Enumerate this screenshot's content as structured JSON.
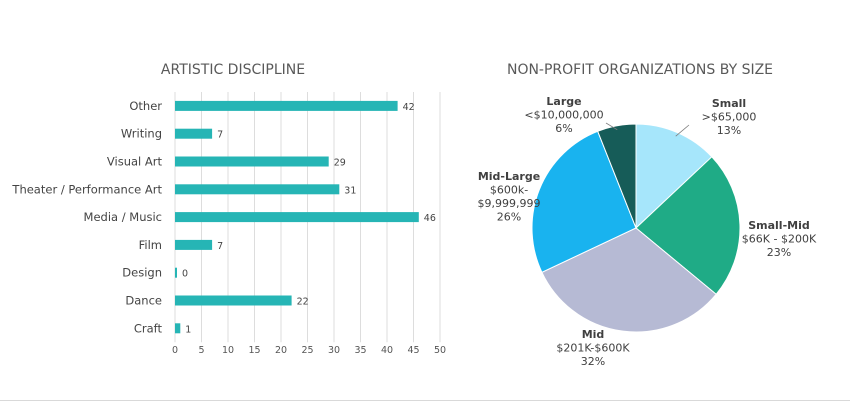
{
  "chart_data": [
    {
      "type": "bar",
      "orientation": "horizontal",
      "title": "ARTISTIC DISCIPLINE",
      "categories": [
        "Other",
        "Writing",
        "Visual Art",
        "Theater / Performance Art",
        "Media / Music",
        "Film",
        "Design",
        "Dance",
        "Craft"
      ],
      "values": [
        42,
        7,
        29,
        31,
        46,
        7,
        0,
        22,
        1
      ],
      "xlim": [
        0,
        50
      ],
      "xticks": [
        0,
        5,
        10,
        15,
        20,
        25,
        30,
        35,
        40,
        45,
        50
      ],
      "grid": true,
      "bar_color": "#26b5b5",
      "grid_color": "#dddddd"
    },
    {
      "type": "pie",
      "title": "NON-PROFIT ORGANIZATIONS BY SIZE",
      "slices": [
        {
          "name": "Small",
          "range_lines": [
            ">$65,000"
          ],
          "pct_label": "13%",
          "value": 13,
          "color": "#a6e6fb"
        },
        {
          "name": "Small-Mid",
          "range_lines": [
            "$66K - $200K"
          ],
          "pct_label": "23%",
          "value": 23,
          "color": "#1fab86"
        },
        {
          "name": "Mid",
          "range_lines": [
            "$201K-$600K"
          ],
          "pct_label": "32%",
          "value": 32,
          "color": "#b6bad4"
        },
        {
          "name": "Mid-Large",
          "range_lines": [
            "$600k-",
            "$9,999,999"
          ],
          "pct_label": "26%",
          "value": 26,
          "color": "#19b3ef"
        },
        {
          "name": "Large",
          "range_lines": [
            "<$10,000,000"
          ],
          "pct_label": "6%",
          "value": 6,
          "color": "#165c58"
        }
      ]
    }
  ]
}
